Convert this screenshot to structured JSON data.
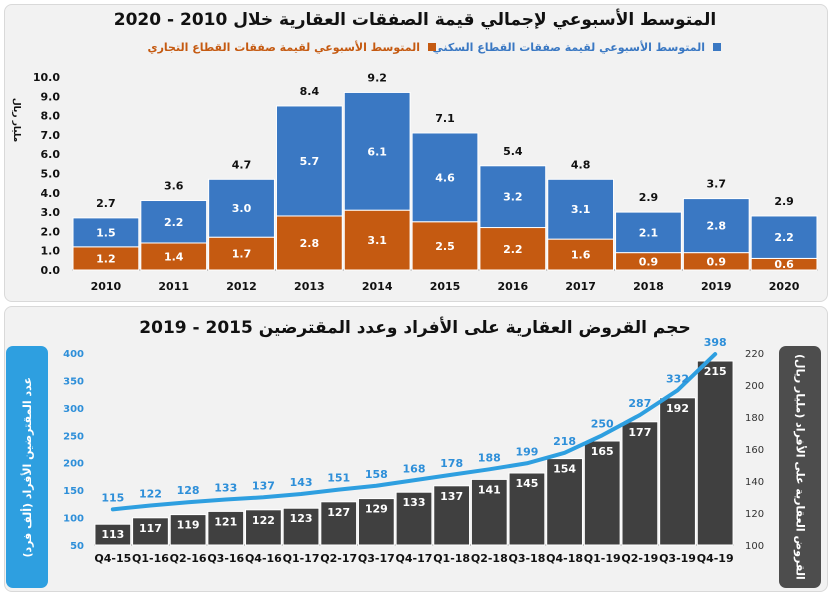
{
  "chart_data": [
    {
      "type": "bar",
      "stacked": true,
      "title": "المتوسط الأسبوعي لإجمالي قيمة الصفقات العقارية خلال 2010 - 2020",
      "ylabel": "مليار ريال",
      "ylim": [
        0,
        10
      ],
      "yticks": [
        "0.0",
        "1.0",
        "2.0",
        "3.0",
        "4.0",
        "5.0",
        "6.0",
        "7.0",
        "8.0",
        "9.0",
        "10.0"
      ],
      "categories": [
        "2010",
        "2011",
        "2012",
        "2013",
        "2014",
        "2015",
        "2016",
        "2017",
        "2018",
        "2019",
        "2020"
      ],
      "series": [
        {
          "name": "المتوسط الأسبوعي لقيمة صفقات القطاع التجاري",
          "color": "#c55a11",
          "values": [
            1.2,
            1.4,
            1.7,
            2.8,
            3.1,
            2.5,
            2.2,
            1.6,
            0.9,
            0.9,
            0.6
          ],
          "labels": [
            "1.2",
            "1.4",
            "1.7",
            "2.8",
            "3.1",
            "2.5",
            "2.2",
            "1.6",
            "0.9",
            "0.9",
            "0.6"
          ]
        },
        {
          "name": "المتوسط الأسبوعي لقيمة صفقات القطاع السكني",
          "color": "#3a78c3",
          "values": [
            1.5,
            2.2,
            3.0,
            5.7,
            6.1,
            4.6,
            3.2,
            3.1,
            2.1,
            2.8,
            2.2
          ],
          "labels": [
            "1.5",
            "2.2",
            "3.0",
            "5.7",
            "6.1",
            "4.6",
            "3.2",
            "3.1",
            "2.1",
            "2.8",
            "2.2"
          ]
        }
      ],
      "totals": [
        2.7,
        3.6,
        4.7,
        8.4,
        9.2,
        7.1,
        5.4,
        4.8,
        2.9,
        3.7,
        2.9
      ],
      "total_labels": [
        "2.7",
        "3.6",
        "4.7",
        "8.4",
        "9.2",
        "7.1",
        "5.4",
        "4.8",
        "2.9",
        "3.7",
        "2.9"
      ],
      "legend_position": "top"
    },
    {
      "type": "bar+line",
      "title": "حجم القروض العقارية على الأفراد وعدد المقترضين 2015 - 2019",
      "categories": [
        "Q4-15",
        "Q1-16",
        "Q2-16",
        "Q3-16",
        "Q4-16",
        "Q1-17",
        "Q2-17",
        "Q3-17",
        "Q4-17",
        "Q1-18",
        "Q2-18",
        "Q3-18",
        "Q4-18",
        "Q1-19",
        "Q2-19",
        "Q3-19",
        "Q4-19"
      ],
      "bars": {
        "name": "القروض العقارية على الأفراد (مليار ريال)",
        "color": "#404040",
        "axis": "right",
        "values": [
          113,
          117,
          119,
          121,
          122,
          123,
          127,
          129,
          133,
          137,
          141,
          145,
          154,
          165,
          177,
          192,
          215
        ],
        "labels": [
          "113",
          "117",
          "119",
          "121",
          "122",
          "123",
          "127",
          "129",
          "133",
          "137",
          "141",
          "145",
          "154",
          "165",
          "177",
          "192",
          "215"
        ]
      },
      "line": {
        "name": "عدد المقترضين الأفراد (ألف فرد)",
        "color": "#2e9fe0",
        "axis": "left",
        "values": [
          115,
          122,
          128,
          133,
          137,
          143,
          151,
          158,
          168,
          178,
          188,
          199,
          218,
          250,
          287,
          332,
          398
        ],
        "labels": [
          "115",
          "122",
          "128",
          "133",
          "137",
          "143",
          "151",
          "158",
          "168",
          "178",
          "188",
          "199",
          "218",
          "250",
          "287",
          "332",
          "398"
        ]
      },
      "left_axis": {
        "label": "عدد المقترضين الأفراد (ألف فرد)",
        "ylim": [
          50,
          400
        ],
        "ticks": [
          "50",
          "100",
          "150",
          "200",
          "250",
          "300",
          "350",
          "400"
        ]
      },
      "right_axis": {
        "label": "القروض العقارية على الأفراد (مليار ريال)",
        "ylim": [
          100,
          220
        ],
        "ticks": [
          "100",
          "120",
          "140",
          "160",
          "180",
          "200",
          "220"
        ]
      }
    }
  ]
}
